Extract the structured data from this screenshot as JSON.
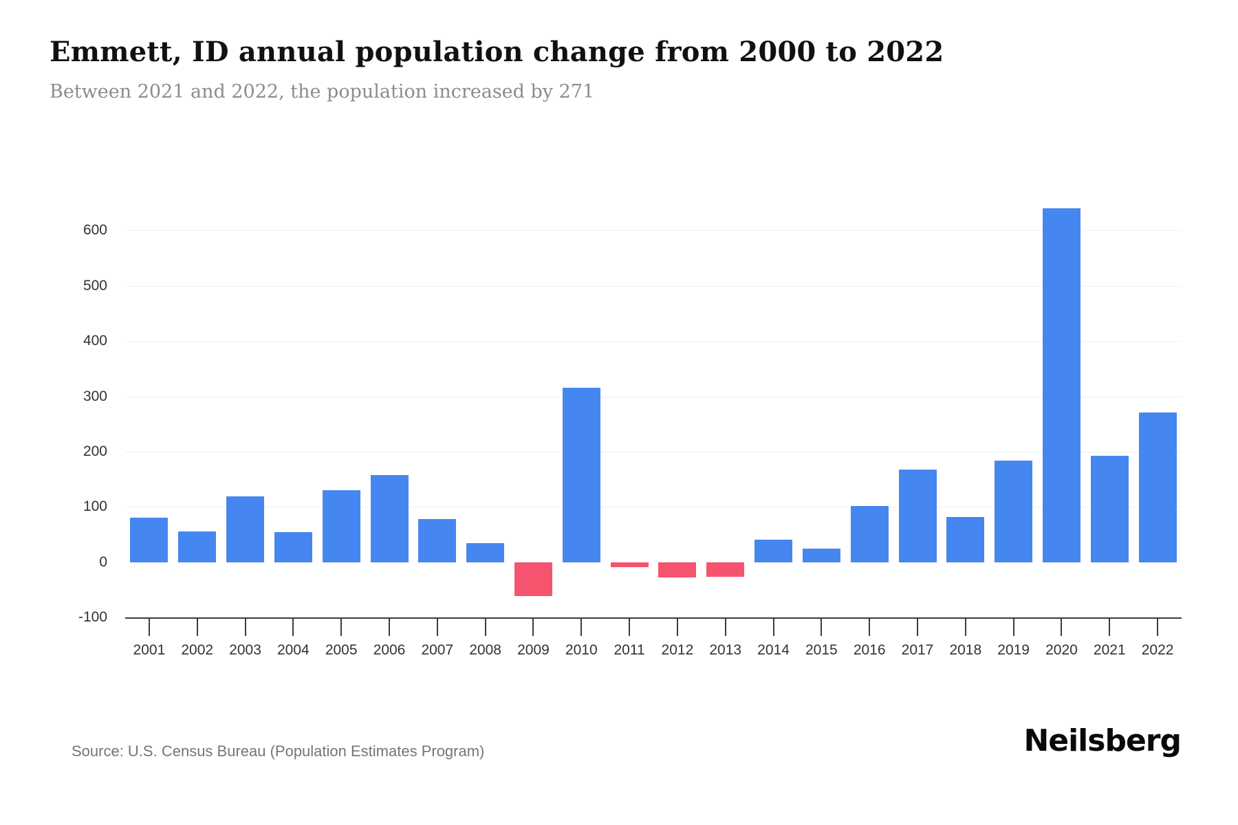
{
  "header": {
    "title": "Emmett, ID annual population change from 2000 to 2022",
    "subtitle": "Between 2021 and 2022, the population increased by 271"
  },
  "footer": {
    "source": "Source: U.S. Census Bureau (Population Estimates Program)",
    "brand": "Neilsberg"
  },
  "chart_data": {
    "type": "bar",
    "title": "Emmett, ID annual population change from 2000 to 2022",
    "xlabel": "",
    "ylabel": "",
    "categories": [
      "2001",
      "2002",
      "2003",
      "2004",
      "2005",
      "2006",
      "2007",
      "2008",
      "2009",
      "2010",
      "2011",
      "2012",
      "2013",
      "2014",
      "2015",
      "2016",
      "2017",
      "2018",
      "2019",
      "2020",
      "2021",
      "2022"
    ],
    "values": [
      80,
      56,
      119,
      54,
      130,
      158,
      78,
      34,
      -62,
      315,
      -9,
      -28,
      -26,
      40,
      24,
      101,
      168,
      82,
      184,
      640,
      192,
      271
    ],
    "ylim": [
      -100,
      700
    ],
    "yticks": [
      600,
      500,
      400,
      300,
      200,
      100,
      0,
      -100
    ],
    "grid": "horizontal-light",
    "legend": "none",
    "colors": {
      "positive_bar": "#4686F0",
      "negative_bar": "#F5536E",
      "gridline": "#efefef",
      "axis_line": "#3c3c3c",
      "axis_text": "#333333"
    }
  }
}
